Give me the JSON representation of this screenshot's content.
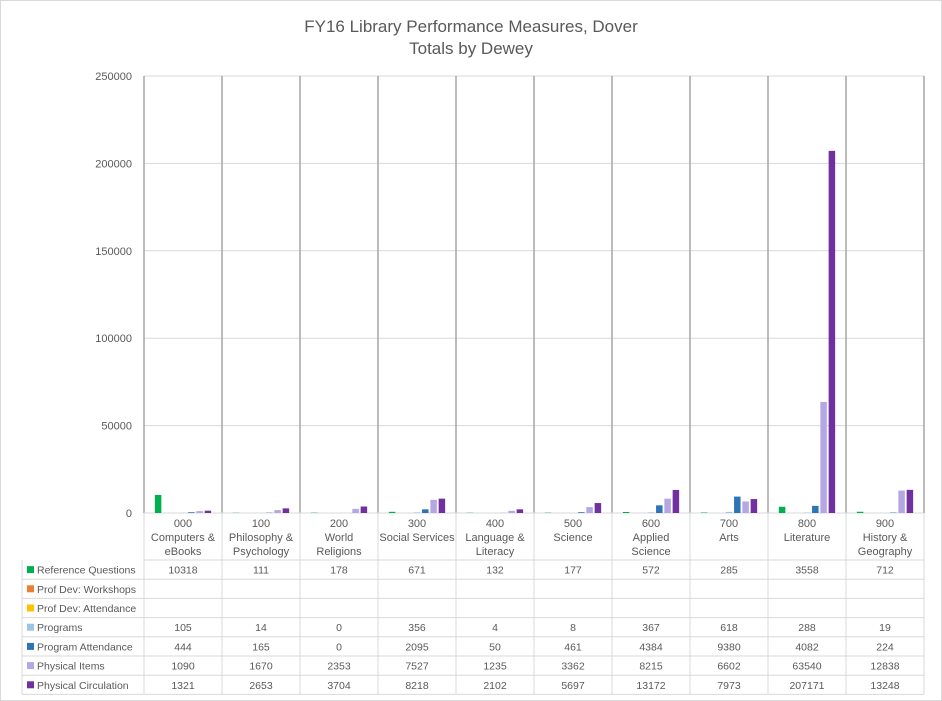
{
  "chart_data": {
    "type": "bar",
    "title": "FY16 Library Performance Measures, Dover",
    "subtitle": "Totals by Dewey",
    "ylim": [
      0,
      250000
    ],
    "yticks": [
      0,
      50000,
      100000,
      150000,
      200000,
      250000
    ],
    "ytick_labels": [
      "0",
      "50000",
      "100000",
      "150000",
      "200000",
      "250000"
    ],
    "categories": [
      [
        "000",
        "Computers &",
        "eBooks"
      ],
      [
        "100",
        "Philosophy &",
        "Psychology"
      ],
      [
        "200",
        "World",
        "Religions"
      ],
      [
        "300",
        "Social Services"
      ],
      [
        "400",
        "Language &",
        "Literacy"
      ],
      [
        "500",
        "Science"
      ],
      [
        "600",
        "Applied",
        "Science"
      ],
      [
        "700",
        "Arts"
      ],
      [
        "800",
        "Literature"
      ],
      [
        "900",
        "History &",
        "Geography"
      ]
    ],
    "grid": true,
    "legend": "data-table-left",
    "series": [
      {
        "name": "Reference Questions",
        "color": "#00b050",
        "values": [
          10318,
          111,
          178,
          671,
          132,
          177,
          572,
          285,
          3558,
          712
        ]
      },
      {
        "name": "Prof Dev: Workshops",
        "color": "#ed7d31",
        "values": [
          null,
          null,
          null,
          null,
          null,
          null,
          null,
          null,
          null,
          null
        ]
      },
      {
        "name": "Prof Dev: Attendance",
        "color": "#ffc000",
        "values": [
          null,
          null,
          null,
          null,
          null,
          null,
          null,
          null,
          null,
          null
        ]
      },
      {
        "name": "Programs",
        "color": "#9dc3e6",
        "values": [
          105,
          14,
          0,
          356,
          4,
          8,
          367,
          618,
          288,
          19
        ]
      },
      {
        "name": "Program Attendance",
        "color": "#2e75b6",
        "values": [
          444,
          165,
          0,
          2095,
          50,
          461,
          4384,
          9380,
          4082,
          224
        ]
      },
      {
        "name": "Physical Items",
        "color": "#b4a7e3",
        "values": [
          1090,
          1670,
          2353,
          7527,
          1235,
          3362,
          8215,
          6602,
          63540,
          12838
        ]
      },
      {
        "name": "Physical Circulation",
        "color": "#7030a0",
        "values": [
          1321,
          2653,
          3704,
          8218,
          2102,
          5697,
          13172,
          7973,
          207171,
          13248
        ]
      }
    ]
  }
}
